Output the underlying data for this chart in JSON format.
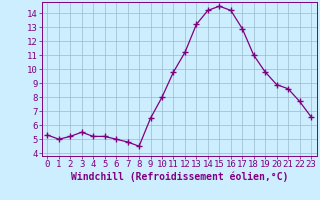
{
  "x": [
    0,
    1,
    2,
    3,
    4,
    5,
    6,
    7,
    8,
    9,
    10,
    11,
    12,
    13,
    14,
    15,
    16,
    17,
    18,
    19,
    20,
    21,
    22,
    23
  ],
  "y": [
    5.3,
    5.0,
    5.2,
    5.5,
    5.2,
    5.2,
    5.0,
    4.8,
    4.5,
    6.5,
    8.0,
    9.8,
    11.2,
    13.2,
    14.2,
    14.5,
    14.2,
    12.9,
    11.0,
    9.8,
    8.9,
    8.6,
    7.7,
    6.6
  ],
  "line_color": "#800080",
  "marker": "+",
  "marker_size": 4.0,
  "bg_color": "#cceeff",
  "grid_color": "#99bbcc",
  "xlabel": "Windchill (Refroidissement éolien,°C)",
  "xlabel_color": "#800080",
  "xlim": [
    -0.5,
    23.5
  ],
  "ylim": [
    3.8,
    14.8
  ],
  "yticks": [
    4,
    5,
    6,
    7,
    8,
    9,
    10,
    11,
    12,
    13,
    14
  ],
  "xticks": [
    0,
    1,
    2,
    3,
    4,
    5,
    6,
    7,
    8,
    9,
    10,
    11,
    12,
    13,
    14,
    15,
    16,
    17,
    18,
    19,
    20,
    21,
    22,
    23
  ],
  "tick_label_color": "#800080",
  "spine_color": "#800080",
  "label_fontsize": 7.0,
  "tick_fontsize": 6.5
}
